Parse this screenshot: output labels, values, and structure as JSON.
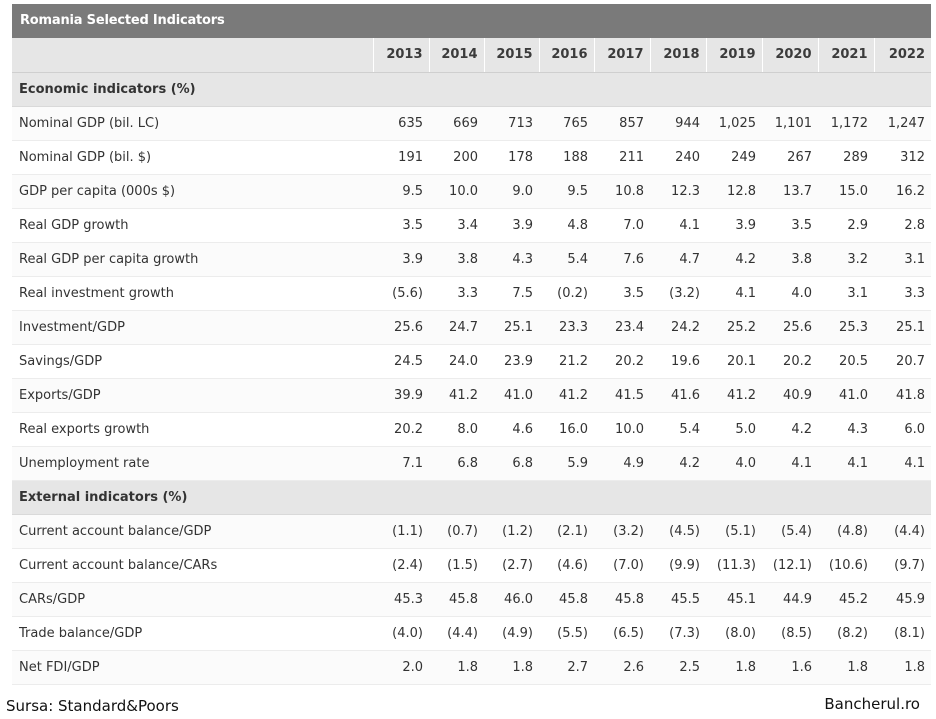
{
  "chart_data": {
    "type": "table",
    "title": "Romania Selected Indicators",
    "years": [
      "2013",
      "2014",
      "2015",
      "2016",
      "2017",
      "2018",
      "2019",
      "2020",
      "2021",
      "2022"
    ],
    "sections": [
      {
        "heading": "Economic indicators (%)",
        "rows": [
          {
            "label": "Nominal GDP (bil. LC)",
            "values": [
              "635",
              "669",
              "713",
              "765",
              "857",
              "944",
              "1,025",
              "1,101",
              "1,172",
              "1,247"
            ]
          },
          {
            "label": "Nominal GDP (bil. $)",
            "values": [
              "191",
              "200",
              "178",
              "188",
              "211",
              "240",
              "249",
              "267",
              "289",
              "312"
            ]
          },
          {
            "label": "GDP per capita (000s $)",
            "values": [
              "9.5",
              "10.0",
              "9.0",
              "9.5",
              "10.8",
              "12.3",
              "12.8",
              "13.7",
              "15.0",
              "16.2"
            ]
          },
          {
            "label": "Real GDP growth",
            "values": [
              "3.5",
              "3.4",
              "3.9",
              "4.8",
              "7.0",
              "4.1",
              "3.9",
              "3.5",
              "2.9",
              "2.8"
            ]
          },
          {
            "label": "Real GDP per capita growth",
            "values": [
              "3.9",
              "3.8",
              "4.3",
              "5.4",
              "7.6",
              "4.7",
              "4.2",
              "3.8",
              "3.2",
              "3.1"
            ]
          },
          {
            "label": "Real investment growth",
            "values": [
              "(5.6)",
              "3.3",
              "7.5",
              "(0.2)",
              "3.5",
              "(3.2)",
              "4.1",
              "4.0",
              "3.1",
              "3.3"
            ]
          },
          {
            "label": "Investment/GDP",
            "values": [
              "25.6",
              "24.7",
              "25.1",
              "23.3",
              "23.4",
              "24.2",
              "25.2",
              "25.6",
              "25.3",
              "25.1"
            ]
          },
          {
            "label": "Savings/GDP",
            "values": [
              "24.5",
              "24.0",
              "23.9",
              "21.2",
              "20.2",
              "19.6",
              "20.1",
              "20.2",
              "20.5",
              "20.7"
            ]
          },
          {
            "label": "Exports/GDP",
            "values": [
              "39.9",
              "41.2",
              "41.0",
              "41.2",
              "41.5",
              "41.6",
              "41.2",
              "40.9",
              "41.0",
              "41.8"
            ]
          },
          {
            "label": "Real exports growth",
            "values": [
              "20.2",
              "8.0",
              "4.6",
              "16.0",
              "10.0",
              "5.4",
              "5.0",
              "4.2",
              "4.3",
              "6.0"
            ]
          },
          {
            "label": "Unemployment rate",
            "values": [
              "7.1",
              "6.8",
              "6.8",
              "5.9",
              "4.9",
              "4.2",
              "4.0",
              "4.1",
              "4.1",
              "4.1"
            ]
          }
        ]
      },
      {
        "heading": "External indicators (%)",
        "rows": [
          {
            "label": "Current account balance/GDP",
            "values": [
              "(1.1)",
              "(0.7)",
              "(1.2)",
              "(2.1)",
              "(3.2)",
              "(4.5)",
              "(5.1)",
              "(5.4)",
              "(4.8)",
              "(4.4)"
            ]
          },
          {
            "label": "Current account balance/CARs",
            "values": [
              "(2.4)",
              "(1.5)",
              "(2.7)",
              "(4.6)",
              "(7.0)",
              "(9.9)",
              "(11.3)",
              "(12.1)",
              "(10.6)",
              "(9.7)"
            ]
          },
          {
            "label": "CARs/GDP",
            "values": [
              "45.3",
              "45.8",
              "46.0",
              "45.8",
              "45.8",
              "45.5",
              "45.1",
              "44.9",
              "45.2",
              "45.9"
            ]
          },
          {
            "label": "Trade balance/GDP",
            "values": [
              "(4.0)",
              "(4.4)",
              "(4.9)",
              "(5.5)",
              "(6.5)",
              "(7.3)",
              "(8.0)",
              "(8.5)",
              "(8.2)",
              "(8.1)"
            ]
          },
          {
            "label": "Net FDI/GDP",
            "values": [
              "2.0",
              "1.8",
              "1.8",
              "2.7",
              "2.6",
              "2.5",
              "1.8",
              "1.6",
              "1.8",
              "1.8"
            ]
          }
        ]
      }
    ]
  },
  "footer": {
    "source": "Sursa: Standard&Poors",
    "brand": "Bancherul.ro"
  }
}
